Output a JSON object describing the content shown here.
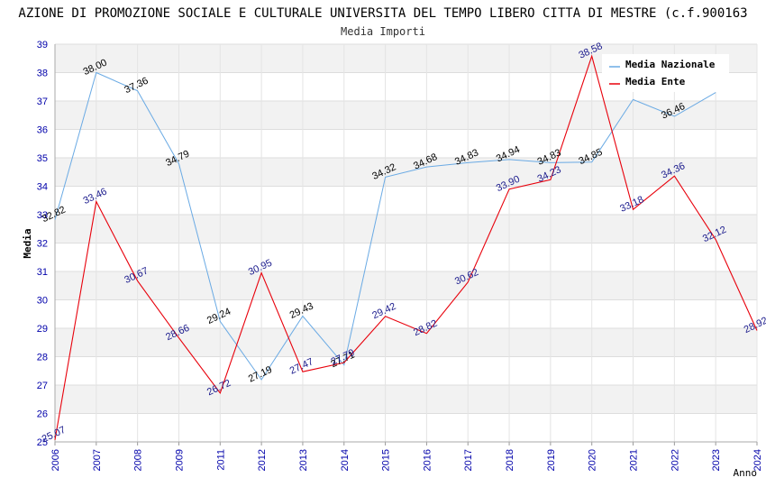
{
  "chart_data": {
    "type": "line",
    "title": "AZIONE DI PROMOZIONE SOCIALE E CULTURALE UNIVERSITA DEL TEMPO LIBERO CITTA DI MESTRE (c.f.900163",
    "subtitle": "Media Importi",
    "xlabel": "Anno",
    "ylabel": "Media",
    "ylim": [
      25,
      39
    ],
    "yticks": [
      25,
      26,
      27,
      28,
      29,
      30,
      31,
      32,
      33,
      34,
      35,
      36,
      37,
      38,
      39
    ],
    "x": [
      "2006",
      "2007",
      "2008",
      "2009",
      "2011",
      "2012",
      "2013",
      "2014",
      "2015",
      "2016",
      "2017",
      "2018",
      "2019",
      "2020",
      "2021",
      "2022",
      "2023",
      "2024"
    ],
    "grid": true,
    "legend_position": "top-right",
    "series": [
      {
        "name": "Media Nazionale",
        "color": "#6aaae4",
        "values": [
          32.82,
          38.0,
          37.36,
          34.79,
          29.24,
          27.19,
          29.43,
          27.71,
          34.32,
          34.68,
          34.83,
          34.94,
          34.83,
          34.85,
          37.05,
          36.46,
          37.3,
          null
        ],
        "labels": [
          "32.82",
          "38.00",
          "37.36",
          "34.79",
          "29.24",
          "27.19",
          "29.43",
          "27.71",
          "34.32",
          "34.68",
          "34.83",
          "34.94",
          "34.83",
          "34.85",
          "",
          "36.46",
          "",
          ""
        ]
      },
      {
        "name": "Media Ente",
        "color": "#e8000b",
        "values": [
          25.07,
          33.46,
          30.67,
          28.66,
          26.72,
          30.95,
          27.47,
          27.79,
          29.42,
          28.82,
          30.62,
          33.9,
          34.23,
          38.58,
          33.18,
          34.36,
          32.12,
          28.92
        ],
        "labels": [
          "25.07",
          "33.46",
          "30.67",
          "28.66",
          "26.72",
          "30.95",
          "27.47",
          "27.79",
          "29.42",
          "28.82",
          "30.62",
          "33.90",
          "34.23",
          "38.58",
          "33.18",
          "34.36",
          "32.12",
          "28.92"
        ]
      }
    ]
  }
}
